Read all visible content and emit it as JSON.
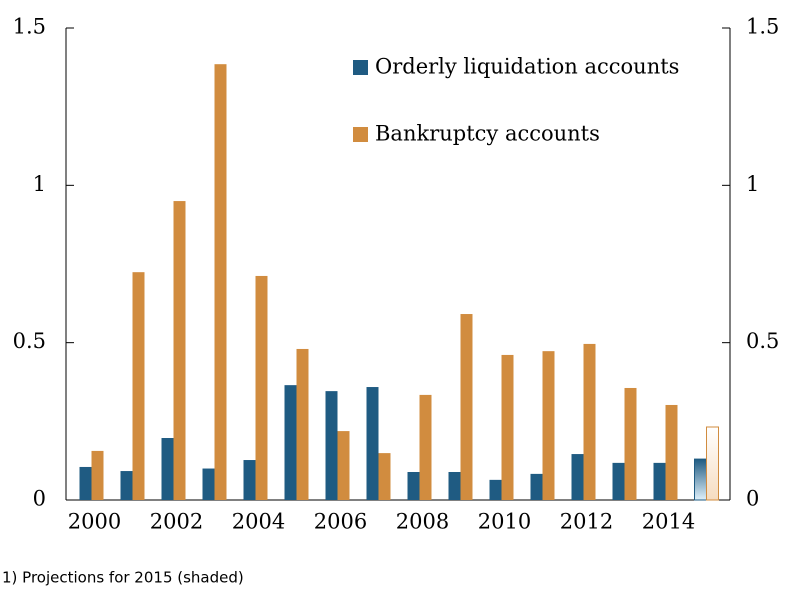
{
  "chart_data": {
    "type": "bar",
    "categories": [
      "2000",
      null,
      "2002",
      null,
      "2004",
      null,
      "2006",
      null,
      "2008",
      null,
      "2010",
      null,
      "2012",
      null,
      "2014",
      null
    ],
    "series": [
      {
        "name": "Orderly liquidation accounts",
        "color": "#1f5b82",
        "values": [
          0.105,
          0.092,
          0.197,
          0.1,
          0.127,
          0.365,
          0.346,
          0.359,
          0.089,
          0.089,
          0.064,
          0.083,
          0.146,
          0.118,
          0.118,
          0.13
        ]
      },
      {
        "name": "Bankruptcy accounts",
        "color": "#d18c3f",
        "values": [
          0.156,
          0.724,
          0.95,
          1.385,
          0.712,
          0.48,
          0.219,
          0.149,
          0.334,
          0.591,
          0.461,
          0.473,
          0.496,
          0.356,
          0.302,
          0.232
        ]
      }
    ],
    "shaded_indices": [
      15
    ],
    "ylim": [
      0,
      1.5
    ],
    "yticks": [
      0,
      0.5,
      1,
      1.5
    ],
    "y2lim": [
      0,
      1.5
    ],
    "y2ticks": [
      0,
      0.5,
      1,
      1.5
    ],
    "legend": "top-right",
    "note": "1) Projections for 2015 (shaded)"
  }
}
